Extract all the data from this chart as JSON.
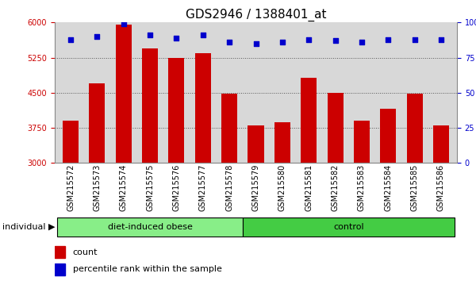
{
  "title": "GDS2946 / 1388401_at",
  "samples": [
    "GSM215572",
    "GSM215573",
    "GSM215574",
    "GSM215575",
    "GSM215576",
    "GSM215577",
    "GSM215578",
    "GSM215579",
    "GSM215580",
    "GSM215581",
    "GSM215582",
    "GSM215583",
    "GSM215584",
    "GSM215585",
    "GSM215586"
  ],
  "counts": [
    3900,
    4700,
    5950,
    5450,
    5250,
    5350,
    4480,
    3800,
    3870,
    4820,
    4500,
    3900,
    4150,
    4480,
    3800
  ],
  "percentiles": [
    88,
    90,
    99,
    91,
    89,
    91,
    86,
    85,
    86,
    88,
    87,
    86,
    88,
    88,
    88
  ],
  "bar_color": "#cc0000",
  "dot_color": "#0000cc",
  "ylim_left": [
    3000,
    6000
  ],
  "ylim_right": [
    0,
    100
  ],
  "yticks_left": [
    3000,
    3750,
    4500,
    5250,
    6000
  ],
  "yticks_right": [
    0,
    25,
    50,
    75,
    100
  ],
  "groups": [
    {
      "label": "diet-induced obese",
      "start": 0,
      "end": 7,
      "color": "#88ee88"
    },
    {
      "label": "control",
      "start": 7,
      "end": 15,
      "color": "#44cc44"
    }
  ],
  "group_row_label": "individual",
  "legend_count_label": "count",
  "legend_percentile_label": "percentile rank within the sample",
  "bg_color": "#d8d8d8",
  "grid_color": "#555555",
  "title_fontsize": 11,
  "tick_fontsize": 7,
  "bar_width": 0.6
}
